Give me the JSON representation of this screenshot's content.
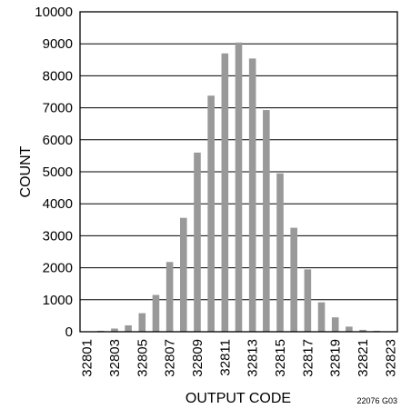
{
  "chart_data": {
    "type": "bar",
    "title": "",
    "xlabel": "OUTPUT CODE",
    "ylabel": "COUNT",
    "ylim": [
      0,
      10000
    ],
    "y_ticks": [
      0,
      1000,
      2000,
      3000,
      4000,
      5000,
      6000,
      7000,
      8000,
      9000,
      10000
    ],
    "grid": "horizontal",
    "categories": [
      "32801",
      "32802",
      "32803",
      "32804",
      "32805",
      "32806",
      "32807",
      "32808",
      "32809",
      "32810",
      "32811",
      "32812",
      "32813",
      "32814",
      "32815",
      "32816",
      "32817",
      "32818",
      "32819",
      "32820",
      "32821",
      "32822",
      "32823"
    ],
    "tick_labels": [
      "32801",
      "32803",
      "32805",
      "32807",
      "32809",
      "32811",
      "32813",
      "32815",
      "32817",
      "32819",
      "32821",
      "32823"
    ],
    "values": [
      0,
      30,
      100,
      200,
      580,
      1150,
      2180,
      3560,
      5600,
      7380,
      8700,
      9040,
      8540,
      6930,
      4950,
      3250,
      1950,
      920,
      450,
      160,
      60,
      30,
      0
    ],
    "bar_color": "#999999",
    "figure_id": "22076 G03"
  }
}
